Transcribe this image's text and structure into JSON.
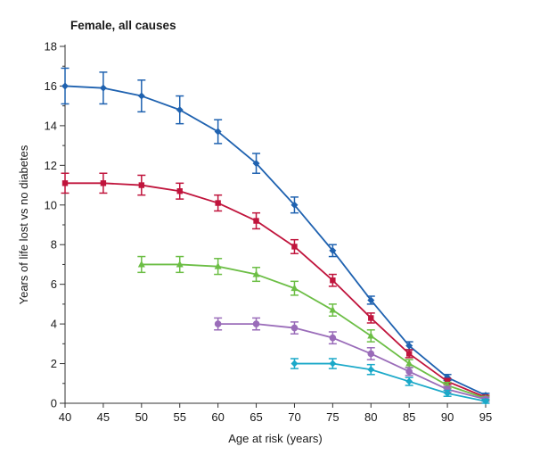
{
  "chart_data": {
    "type": "line",
    "title": "Female, all causes",
    "xlabel": "Age at risk (years)",
    "ylabel": "Years of life lost vs no diabetes",
    "xlim": [
      40,
      95
    ],
    "ylim": [
      0,
      18
    ],
    "xticks": [
      40,
      45,
      50,
      55,
      60,
      65,
      70,
      75,
      80,
      85,
      90,
      95
    ],
    "yticks": [
      0,
      2,
      4,
      6,
      8,
      10,
      12,
      14,
      16,
      18
    ],
    "grid": false,
    "legend": "none",
    "series": [
      {
        "name": "series-blue",
        "color": "#1f62b0",
        "marker": "diamond",
        "x": [
          40,
          45,
          50,
          55,
          60,
          65,
          70,
          75,
          80,
          85,
          90,
          95
        ],
        "y": [
          16.0,
          15.9,
          15.5,
          14.8,
          13.7,
          12.1,
          10.0,
          7.7,
          5.2,
          2.9,
          1.3,
          0.4
        ],
        "err": [
          0.9,
          0.8,
          0.8,
          0.7,
          0.6,
          0.5,
          0.4,
          0.3,
          0.2,
          0.2,
          0.15,
          0.1
        ]
      },
      {
        "name": "series-red",
        "color": "#c0143c",
        "marker": "square",
        "x": [
          40,
          45,
          50,
          55,
          60,
          65,
          70,
          75,
          80,
          85,
          90,
          95
        ],
        "y": [
          11.1,
          11.1,
          11.0,
          10.7,
          10.1,
          9.2,
          7.9,
          6.2,
          4.3,
          2.5,
          1.1,
          0.3
        ],
        "err": [
          0.5,
          0.5,
          0.5,
          0.4,
          0.4,
          0.4,
          0.35,
          0.3,
          0.25,
          0.2,
          0.15,
          0.1
        ]
      },
      {
        "name": "series-green",
        "color": "#6cbe45",
        "marker": "triangle",
        "x": [
          50,
          55,
          60,
          65,
          70,
          75,
          80,
          85,
          90,
          95
        ],
        "y": [
          7.0,
          7.0,
          6.9,
          6.5,
          5.8,
          4.7,
          3.4,
          2.0,
          0.9,
          0.25
        ],
        "err": [
          0.4,
          0.4,
          0.4,
          0.35,
          0.35,
          0.3,
          0.3,
          0.2,
          0.15,
          0.1
        ]
      },
      {
        "name": "series-purple",
        "color": "#9a6cb9",
        "marker": "circle",
        "x": [
          60,
          65,
          70,
          75,
          80,
          85,
          90,
          95
        ],
        "y": [
          4.0,
          4.0,
          3.8,
          3.3,
          2.5,
          1.6,
          0.7,
          0.2
        ],
        "err": [
          0.3,
          0.3,
          0.3,
          0.3,
          0.3,
          0.2,
          0.15,
          0.1
        ]
      },
      {
        "name": "series-cyan",
        "color": "#1ba9c9",
        "marker": "diamond",
        "x": [
          70,
          75,
          80,
          85,
          90,
          95
        ],
        "y": [
          2.0,
          2.0,
          1.7,
          1.1,
          0.5,
          0.1
        ],
        "err": [
          0.25,
          0.25,
          0.25,
          0.2,
          0.15,
          0.1
        ]
      }
    ]
  }
}
